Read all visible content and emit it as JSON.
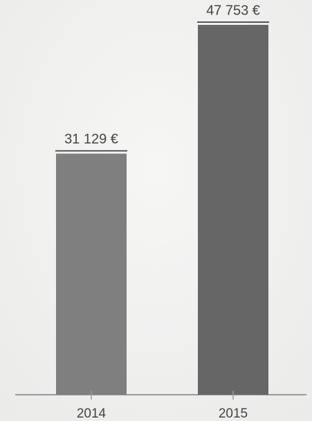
{
  "chart_data": {
    "type": "bar",
    "categories": [
      "2014",
      "2015"
    ],
    "values": [
      31129,
      47753
    ],
    "value_labels": [
      "31 129 €",
      "47 753 €"
    ],
    "colors": [
      "#7f7f7f",
      "#666666"
    ]
  }
}
